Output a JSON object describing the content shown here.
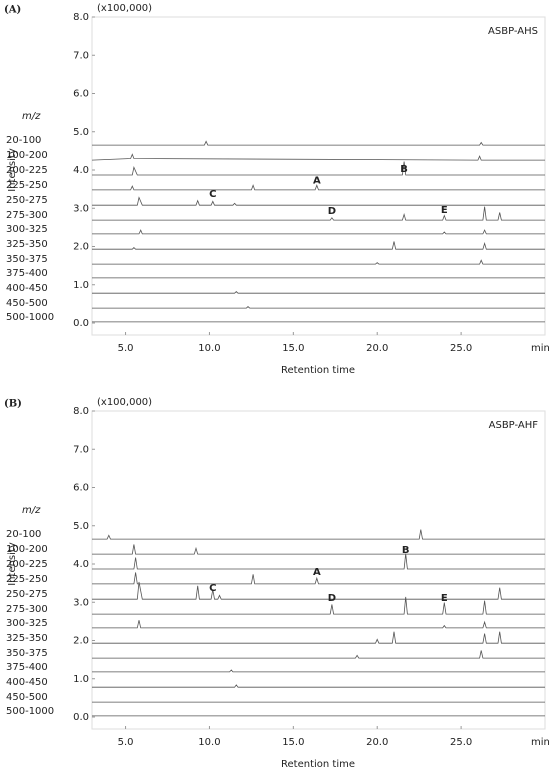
{
  "chart_data": [
    {
      "type": "line",
      "panel_label": "(A)",
      "scale_label": "(x100,000)",
      "title": "ASBP-AHS",
      "legend_title": "m/z",
      "xlabel": "Retention time",
      "ylabel": "Intensity",
      "x_unit": "min",
      "line_color": "#555",
      "xlim": [
        3,
        30
      ],
      "ylim": [
        0,
        8
      ],
      "xticks": [
        {
          "value": 5,
          "label": "5.0"
        },
        {
          "value": 10,
          "label": "10.0"
        },
        {
          "value": 15,
          "label": "15.0"
        },
        {
          "value": 20,
          "label": "20.0"
        },
        {
          "value": 25,
          "label": "25.0"
        }
      ],
      "yticks": [
        {
          "value": 0,
          "label": "0.0"
        },
        {
          "value": 1,
          "label": "1.0"
        },
        {
          "value": 2,
          "label": "2.0"
        },
        {
          "value": 3,
          "label": "3.0"
        },
        {
          "value": 4,
          "label": "4.0"
        },
        {
          "value": 5,
          "label": "5.0"
        },
        {
          "value": 6,
          "label": "6.0"
        },
        {
          "value": 7,
          "label": "7.0"
        },
        {
          "value": 8,
          "label": "8.0"
        }
      ],
      "series": [
        {
          "name": "20-100",
          "x": [
            3,
            9.7,
            9.8,
            9.9,
            26.1,
            26.2,
            26.3,
            30
          ],
          "values": [
            4.65,
            4.65,
            4.75,
            4.65,
            4.65,
            4.72,
            4.65,
            4.65
          ]
        },
        {
          "name": "100-200",
          "x": [
            3,
            5.3,
            5.4,
            5.5,
            26,
            26.1,
            26.2,
            30
          ],
          "values": [
            4.26,
            4.3,
            4.41,
            4.3,
            4.26,
            4.36,
            4.26,
            4.26
          ]
        },
        {
          "name": "200-225",
          "x": [
            3,
            5.4,
            5.5,
            5.7,
            21.5,
            21.6,
            21.7,
            30
          ],
          "values": [
            3.87,
            3.87,
            4.07,
            3.87,
            3.87,
            4.22,
            3.87,
            3.87
          ]
        },
        {
          "name": "225-250",
          "x": [
            3,
            5.3,
            5.4,
            5.5,
            12.5,
            12.6,
            12.7,
            16.3,
            16.4,
            16.5,
            30
          ],
          "values": [
            3.48,
            3.48,
            3.58,
            3.48,
            3.48,
            3.6,
            3.48,
            3.48,
            3.6,
            3.48,
            3.48
          ]
        },
        {
          "name": "250-275",
          "x": [
            3,
            5.7,
            5.8,
            6,
            9.2,
            9.3,
            9.4,
            10.1,
            10.2,
            10.3,
            11.4,
            11.5,
            11.6,
            30
          ],
          "values": [
            3.08,
            3.08,
            3.28,
            3.08,
            3.08,
            3.2,
            3.08,
            3.08,
            3.18,
            3.08,
            3.08,
            3.13,
            3.08,
            3.08
          ]
        },
        {
          "name": "275-300",
          "x": [
            3,
            17.2,
            17.3,
            17.4,
            21.5,
            21.6,
            21.7,
            23.9,
            24,
            24.1,
            26.3,
            26.4,
            26.5,
            27.2,
            27.3,
            27.4,
            30
          ],
          "values": [
            2.69,
            2.69,
            2.75,
            2.69,
            2.69,
            2.84,
            2.69,
            2.69,
            2.81,
            2.69,
            2.69,
            3.04,
            2.69,
            2.69,
            2.89,
            2.69,
            2.69
          ]
        },
        {
          "name": "300-325",
          "x": [
            3,
            5.8,
            5.9,
            6,
            23.9,
            24,
            24.1,
            26.3,
            26.4,
            26.5,
            30
          ],
          "values": [
            2.33,
            2.33,
            2.43,
            2.33,
            2.33,
            2.38,
            2.33,
            2.33,
            2.43,
            2.33,
            2.33
          ]
        },
        {
          "name": "325-350",
          "x": [
            3,
            5.4,
            5.5,
            5.6,
            20.9,
            21,
            21.1,
            26.3,
            26.4,
            26.5,
            30
          ],
          "values": [
            1.93,
            1.93,
            1.97,
            1.93,
            1.93,
            2.13,
            1.93,
            1.93,
            2.08,
            1.93,
            1.93
          ]
        },
        {
          "name": "350-375",
          "x": [
            3,
            19.9,
            20,
            20.1,
            26.1,
            26.2,
            26.3,
            30
          ],
          "values": [
            1.54,
            1.54,
            1.58,
            1.54,
            1.54,
            1.64,
            1.54,
            1.54
          ]
        },
        {
          "name": "375-400",
          "x": [
            3,
            30
          ],
          "values": [
            1.18,
            1.18
          ]
        },
        {
          "name": "400-450",
          "x": [
            3,
            11.5,
            11.6,
            11.7,
            30
          ],
          "values": [
            0.78,
            0.78,
            0.82,
            0.78,
            0.78
          ]
        },
        {
          "name": "450-500",
          "x": [
            3,
            12.2,
            12.3,
            12.4,
            30
          ],
          "values": [
            0.39,
            0.39,
            0.43,
            0.39,
            0.39
          ]
        },
        {
          "name": "500-1000",
          "x": [
            3,
            30
          ],
          "values": [
            0.03,
            0.03
          ]
        }
      ],
      "annotations": [
        {
          "text": "A",
          "x": 16.4,
          "y": 3.72
        },
        {
          "text": "B",
          "x": 21.6,
          "y": 4.03
        },
        {
          "text": "C",
          "x": 10.2,
          "y": 3.37
        },
        {
          "text": "D",
          "x": 17.3,
          "y": 2.93
        },
        {
          "text": "E",
          "x": 24.0,
          "y": 2.96
        }
      ]
    },
    {
      "type": "line",
      "panel_label": "(B)",
      "scale_label": "(x100,000)",
      "title": "ASBP-AHF",
      "legend_title": "m/z",
      "xlabel": "Retention time",
      "ylabel": "Intensity",
      "x_unit": "min",
      "line_color": "#555",
      "xlim": [
        3,
        30
      ],
      "ylim": [
        0,
        8
      ],
      "xticks": [
        {
          "value": 5,
          "label": "5.0"
        },
        {
          "value": 10,
          "label": "10.0"
        },
        {
          "value": 15,
          "label": "15.0"
        },
        {
          "value": 20,
          "label": "20.0"
        },
        {
          "value": 25,
          "label": "25.0"
        }
      ],
      "yticks": [
        {
          "value": 0,
          "label": "0.0"
        },
        {
          "value": 1,
          "label": "1.0"
        },
        {
          "value": 2,
          "label": "2.0"
        },
        {
          "value": 3,
          "label": "3.0"
        },
        {
          "value": 4,
          "label": "4.0"
        },
        {
          "value": 5,
          "label": "5.0"
        },
        {
          "value": 6,
          "label": "6.0"
        },
        {
          "value": 7,
          "label": "7.0"
        },
        {
          "value": 8,
          "label": "8.0"
        }
      ],
      "series": [
        {
          "name": "20-100",
          "x": [
            3,
            3.9,
            4,
            4.1,
            22.5,
            22.6,
            22.7,
            30
          ],
          "values": [
            4.65,
            4.65,
            4.75,
            4.65,
            4.65,
            4.9,
            4.65,
            4.65
          ]
        },
        {
          "name": "100-200",
          "x": [
            3,
            5.4,
            5.5,
            5.6,
            9.1,
            9.2,
            9.3,
            30
          ],
          "values": [
            4.26,
            4.26,
            4.51,
            4.26,
            4.26,
            4.41,
            4.26,
            4.26
          ]
        },
        {
          "name": "200-225",
          "x": [
            3,
            5.5,
            5.6,
            5.7,
            21.6,
            21.7,
            21.8,
            30
          ],
          "values": [
            3.87,
            3.87,
            4.17,
            3.87,
            3.87,
            4.27,
            3.87,
            3.87
          ]
        },
        {
          "name": "225-250",
          "x": [
            3,
            5.5,
            5.6,
            5.7,
            12.5,
            12.6,
            12.7,
            16.3,
            16.4,
            16.5,
            30
          ],
          "values": [
            3.48,
            3.48,
            3.78,
            3.48,
            3.48,
            3.73,
            3.48,
            3.48,
            3.63,
            3.48,
            3.48
          ]
        },
        {
          "name": "250-275",
          "x": [
            3,
            5.7,
            5.8,
            6,
            9.2,
            9.3,
            9.4,
            10.1,
            10.2,
            10.3,
            10.5,
            10.6,
            10.7,
            27.2,
            27.3,
            27.4,
            30
          ],
          "values": [
            3.08,
            3.08,
            3.53,
            3.08,
            3.08,
            3.43,
            3.08,
            3.08,
            3.33,
            3.08,
            3.08,
            3.18,
            3.08,
            3.08,
            3.38,
            3.08,
            3.08
          ]
        },
        {
          "name": "275-300",
          "x": [
            3,
            17.2,
            17.3,
            17.4,
            21.6,
            21.7,
            21.8,
            23.9,
            24,
            24.1,
            26.3,
            26.4,
            26.5,
            30
          ],
          "values": [
            2.69,
            2.69,
            2.94,
            2.69,
            2.69,
            3.14,
            2.69,
            2.69,
            2.99,
            2.69,
            2.69,
            3.04,
            2.69,
            2.69
          ]
        },
        {
          "name": "300-325",
          "x": [
            3,
            5.7,
            5.8,
            5.9,
            23.9,
            24,
            24.1,
            26.3,
            26.4,
            26.5,
            30
          ],
          "values": [
            2.33,
            2.33,
            2.53,
            2.33,
            2.33,
            2.39,
            2.33,
            2.33,
            2.48,
            2.33,
            2.33
          ]
        },
        {
          "name": "325-350",
          "x": [
            3,
            19.9,
            20,
            20.1,
            20.9,
            21,
            21.1,
            26.3,
            26.4,
            26.5,
            27.2,
            27.3,
            27.4,
            30
          ],
          "values": [
            1.93,
            1.93,
            2.03,
            1.93,
            1.93,
            2.23,
            1.93,
            1.93,
            2.18,
            1.93,
            1.93,
            2.23,
            1.93,
            1.93
          ]
        },
        {
          "name": "350-375",
          "x": [
            3,
            18.7,
            18.8,
            18.9,
            26.1,
            26.2,
            26.3,
            30
          ],
          "values": [
            1.54,
            1.54,
            1.61,
            1.54,
            1.54,
            1.74,
            1.54,
            1.54
          ]
        },
        {
          "name": "375-400",
          "x": [
            3,
            11.2,
            11.3,
            11.4,
            30
          ],
          "values": [
            1.18,
            1.18,
            1.23,
            1.18,
            1.18
          ]
        },
        {
          "name": "400-450",
          "x": [
            3,
            11.5,
            11.6,
            11.7,
            30
          ],
          "values": [
            0.78,
            0.78,
            0.84,
            0.78,
            0.78
          ]
        },
        {
          "name": "450-500",
          "x": [
            3,
            30
          ],
          "values": [
            0.39,
            0.39
          ]
        },
        {
          "name": "500-1000",
          "x": [
            3,
            30
          ],
          "values": [
            0.03,
            0.03
          ]
        }
      ],
      "annotations": [
        {
          "text": "A",
          "x": 16.4,
          "y": 3.79
        },
        {
          "text": "B",
          "x": 21.7,
          "y": 4.37
        },
        {
          "text": "C",
          "x": 10.2,
          "y": 3.37
        },
        {
          "text": "D",
          "x": 17.3,
          "y": 3.11
        },
        {
          "text": "E",
          "x": 24.0,
          "y": 3.11
        }
      ]
    }
  ]
}
